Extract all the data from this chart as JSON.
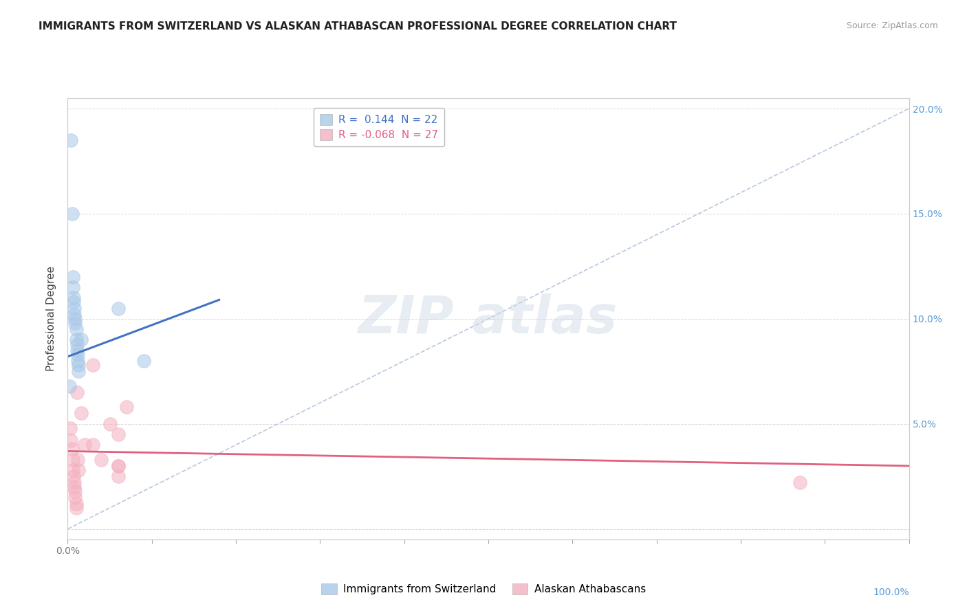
{
  "title": "IMMIGRANTS FROM SWITZERLAND VS ALASKAN ATHABASCAN PROFESSIONAL DEGREE CORRELATION CHART",
  "source": "Source: ZipAtlas.com",
  "ylabel": "Professional Degree",
  "legend_blue": "R =  0.144  N = 22",
  "legend_pink": "R = -0.068  N = 27",
  "bottom_legend_blue": "Immigrants from Switzerland",
  "bottom_legend_pink": "Alaskan Athabascans",
  "blue_scatter_x": [
    0.004,
    0.005,
    0.006,
    0.006,
    0.007,
    0.007,
    0.008,
    0.008,
    0.009,
    0.009,
    0.01,
    0.01,
    0.011,
    0.011,
    0.012,
    0.012,
    0.013,
    0.013,
    0.016,
    0.06,
    0.09,
    0.002
  ],
  "blue_scatter_y": [
    0.185,
    0.15,
    0.12,
    0.115,
    0.11,
    0.108,
    0.105,
    0.102,
    0.1,
    0.098,
    0.095,
    0.09,
    0.088,
    0.085,
    0.083,
    0.08,
    0.078,
    0.075,
    0.09,
    0.105,
    0.08,
    0.068
  ],
  "pink_scatter_x": [
    0.003,
    0.004,
    0.005,
    0.006,
    0.006,
    0.007,
    0.008,
    0.008,
    0.009,
    0.009,
    0.01,
    0.01,
    0.011,
    0.012,
    0.013,
    0.016,
    0.02,
    0.03,
    0.03,
    0.04,
    0.05,
    0.06,
    0.06,
    0.07,
    0.06,
    0.06,
    0.87
  ],
  "pink_scatter_y": [
    0.048,
    0.042,
    0.038,
    0.033,
    0.028,
    0.025,
    0.022,
    0.02,
    0.018,
    0.015,
    0.012,
    0.01,
    0.065,
    0.033,
    0.028,
    0.055,
    0.04,
    0.078,
    0.04,
    0.033,
    0.05,
    0.03,
    0.045,
    0.058,
    0.03,
    0.025,
    0.022
  ],
  "blue_line_x": [
    0.0,
    0.18
  ],
  "blue_line_y": [
    0.082,
    0.109
  ],
  "pink_line_x": [
    0.0,
    1.0
  ],
  "pink_line_y": [
    0.037,
    0.03
  ],
  "dashed_line_x": [
    0.0,
    1.0
  ],
  "dashed_line_y": [
    0.0,
    0.2
  ],
  "xlim": [
    0.0,
    1.0
  ],
  "ylim": [
    -0.005,
    0.205
  ],
  "yticks": [
    0.0,
    0.05,
    0.1,
    0.15,
    0.2
  ],
  "xticks": [
    0.0,
    0.1,
    0.2,
    0.3,
    0.4,
    0.5,
    0.6,
    0.7,
    0.8,
    0.9,
    1.0
  ],
  "grid_color": "#d8d8d8",
  "blue_color": "#a8c8e8",
  "pink_color": "#f4b0c0",
  "blue_line_color": "#4472c4",
  "pink_line_color": "#e06080",
  "dashed_line_color": "#b8c8e0",
  "title_fontsize": 11,
  "source_fontsize": 9,
  "axis_tick_color": "#777777",
  "right_tick_color": "#5b9bd5"
}
